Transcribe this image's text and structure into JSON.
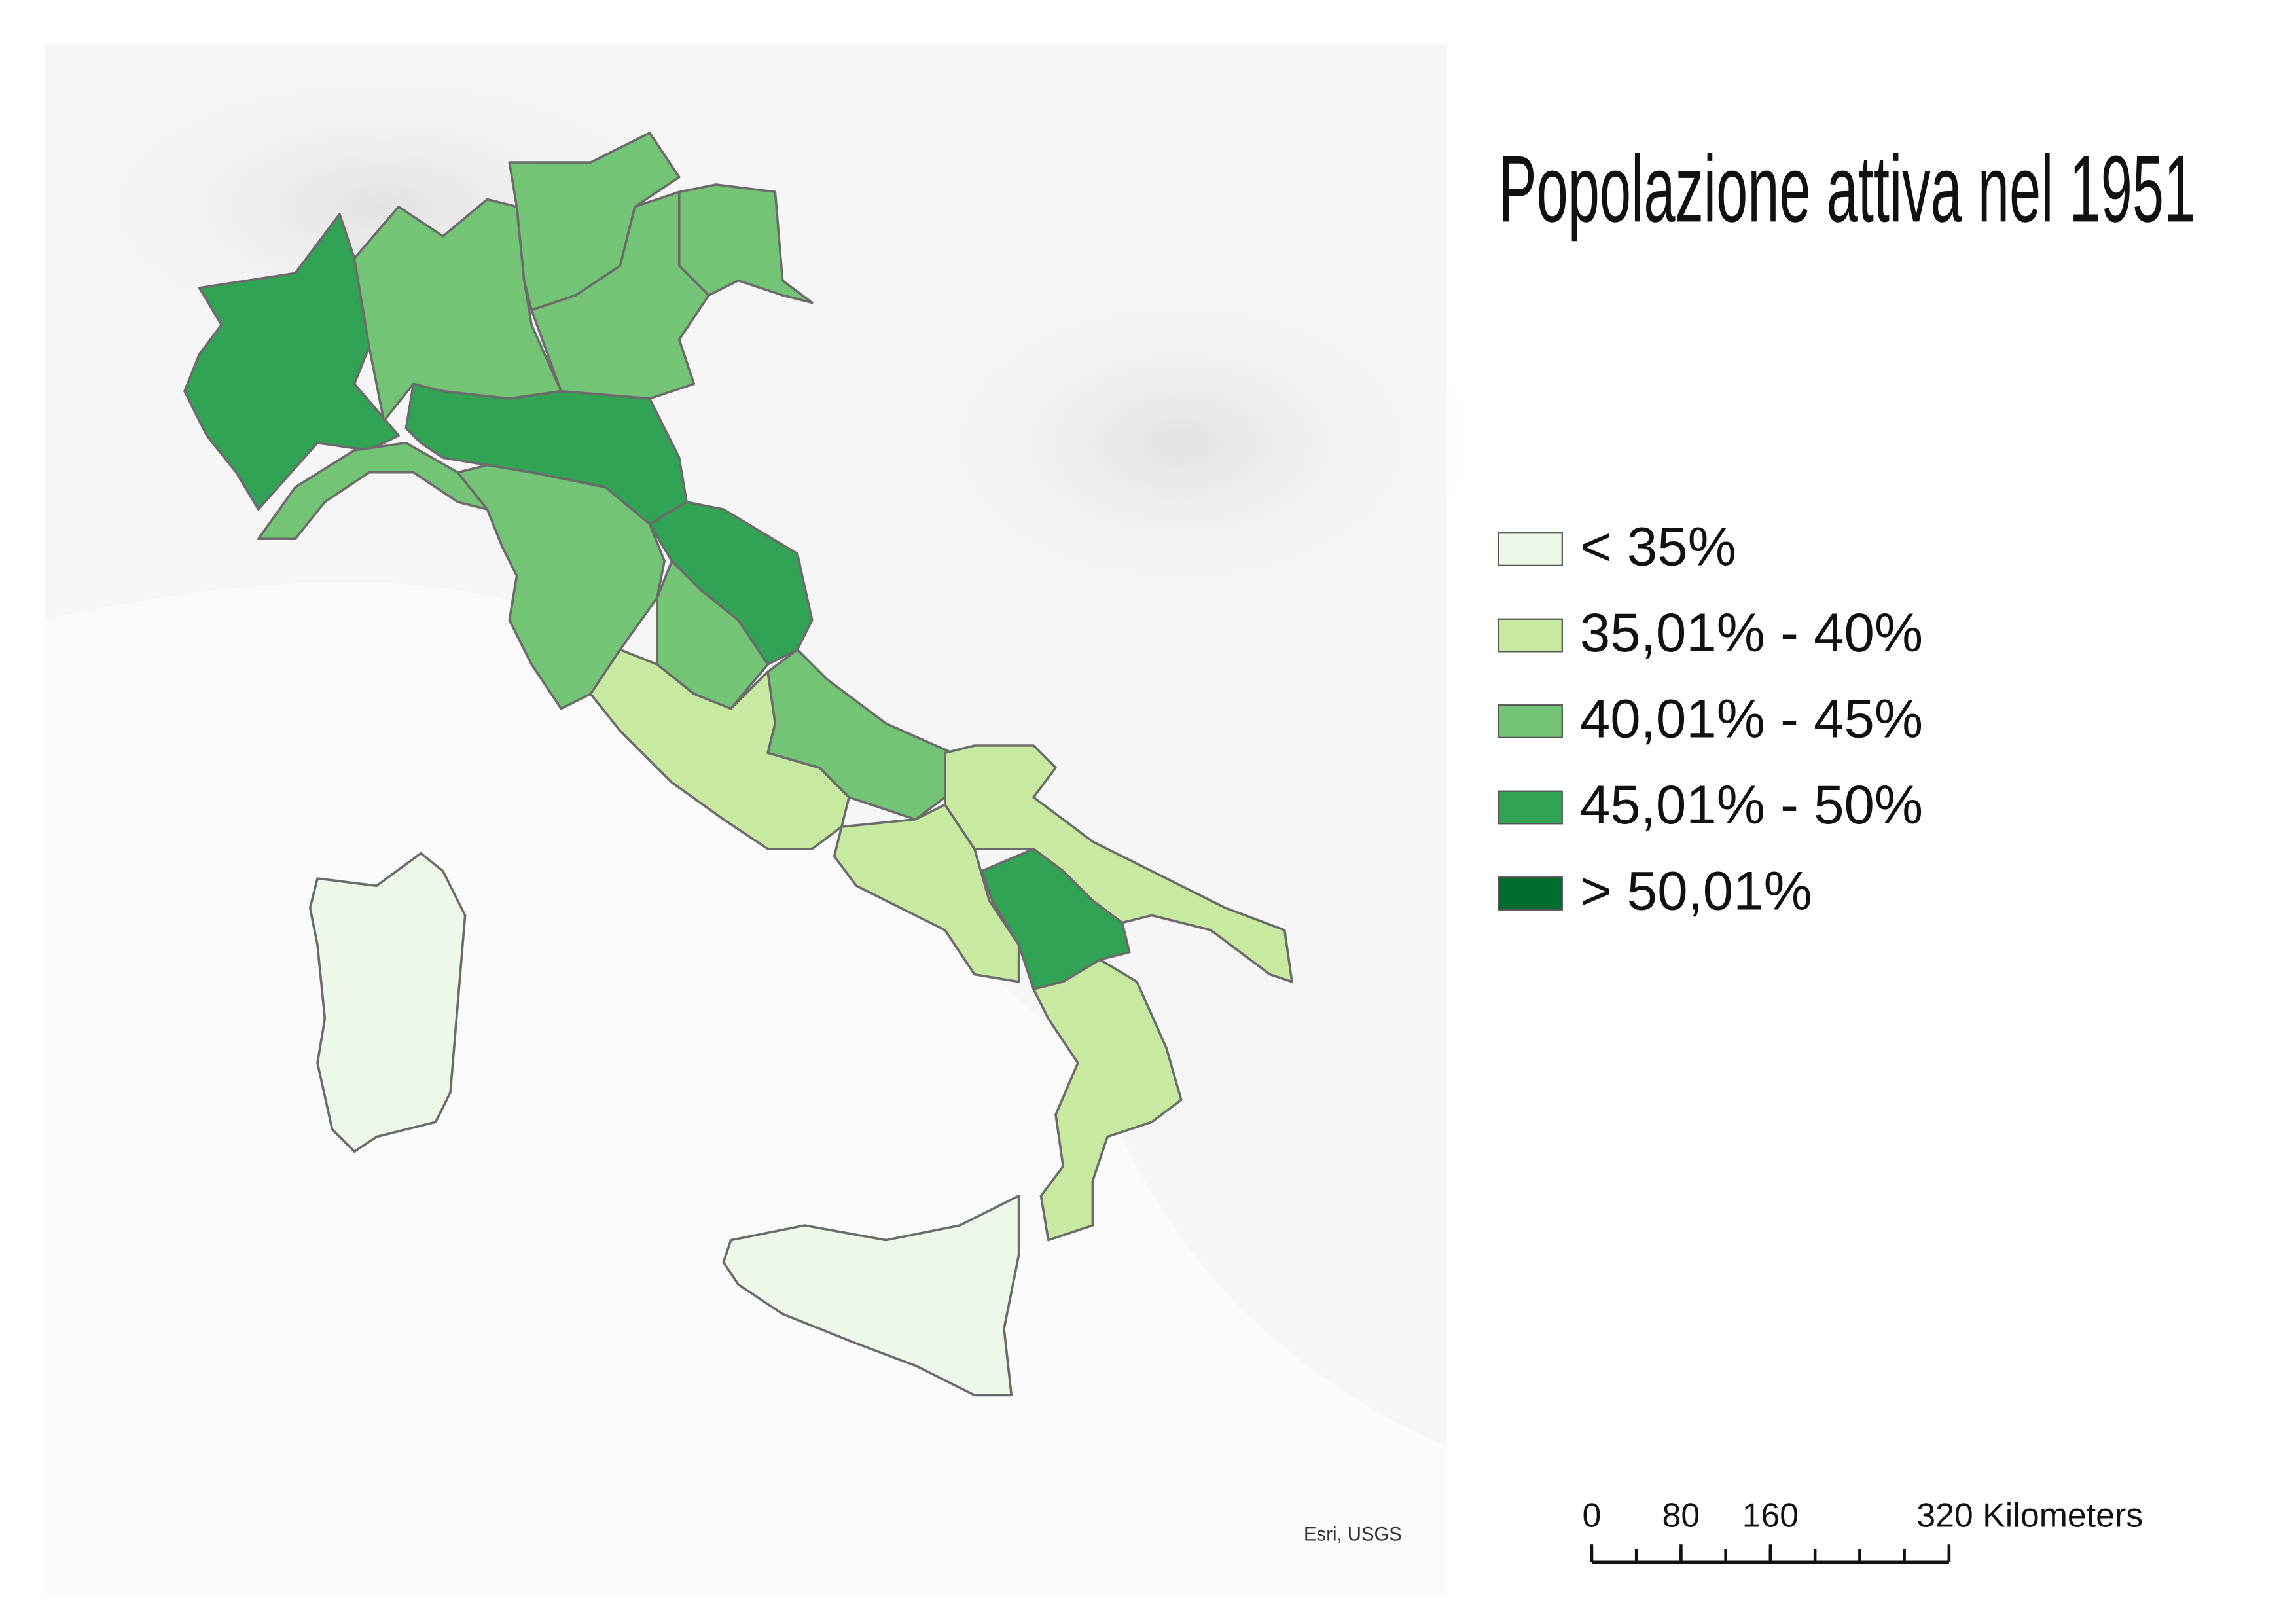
{
  "title": "Popolazione attiva nel 1951",
  "legend": {
    "items": [
      {
        "label": "< 35%",
        "color": "#edf8e9"
      },
      {
        "label": "35,01% - 40%",
        "color": "#c7e9a0"
      },
      {
        "label": "40,01% - 45%",
        "color": "#74c476"
      },
      {
        "label": "45,01% - 50%",
        "color": "#31a354"
      },
      {
        "label": "> 50,01%",
        "color": "#006d2c"
      }
    ]
  },
  "scale_bar": {
    "ticks": [
      0,
      80,
      160,
      {
        "value": 320,
        "label": "320 Kilometers"
      }
    ]
  },
  "credit": "Esri, USGS"
}
